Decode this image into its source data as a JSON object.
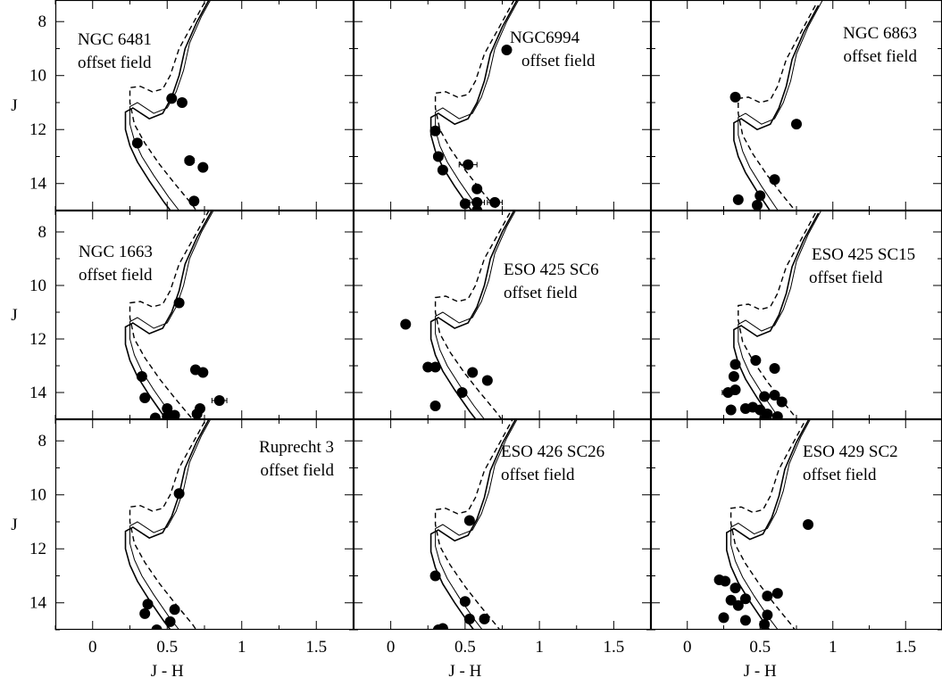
{
  "chart_data": {
    "type": "scatter",
    "layout": "3x3 grid, shared axes",
    "xlabel": "J - H",
    "ylabel": "J",
    "xlim": [
      -0.25,
      1.75
    ],
    "ylim": [
      15.0,
      7.2
    ],
    "y_inverted": true,
    "xticks": [
      0,
      0.5,
      1,
      1.5
    ],
    "xtick_labels": [
      "0",
      "0.5",
      "1",
      "1.5"
    ],
    "yticks": [
      8,
      10,
      12,
      14
    ],
    "ytick_labels": [
      "8",
      "10",
      "12",
      "14"
    ],
    "grid": false,
    "panels": [
      {
        "label": [
          "NGC 6481",
          "offset field"
        ],
        "points": [
          [
            0.53,
            10.85
          ],
          [
            0.6,
            11.0
          ],
          [
            0.3,
            12.5
          ],
          [
            0.65,
            13.15
          ],
          [
            0.74,
            13.4
          ],
          [
            0.68,
            14.65
          ]
        ],
        "xerr": [
          0,
          0,
          0,
          0.03,
          0,
          0
        ],
        "iso_shift": [
          0,
          0
        ]
      },
      {
        "label": [
          "NGC6994",
          "offset field"
        ],
        "points": [
          [
            0.78,
            9.05
          ],
          [
            0.3,
            12.05
          ],
          [
            0.32,
            13.0
          ],
          [
            0.35,
            13.5
          ],
          [
            0.52,
            13.3
          ],
          [
            0.58,
            14.2
          ],
          [
            0.58,
            14.7
          ],
          [
            0.7,
            14.7
          ],
          [
            0.5,
            14.75
          ],
          [
            0.58,
            15.0
          ]
        ],
        "xerr": [
          0,
          0,
          0.03,
          0,
          0.06,
          0,
          0.05,
          0.05,
          0,
          0
        ],
        "iso_shift": [
          0.05,
          0.2
        ]
      },
      {
        "label": [
          "NGC 6863",
          "offset field"
        ],
        "points": [
          [
            0.33,
            10.8
          ],
          [
            0.75,
            11.8
          ],
          [
            0.6,
            13.85
          ],
          [
            0.35,
            14.6
          ],
          [
            0.5,
            14.45
          ],
          [
            0.48,
            14.8
          ]
        ],
        "xerr": [
          0,
          0,
          0.02,
          0,
          0,
          0
        ],
        "iso_shift": [
          0.1,
          0.4
        ]
      },
      {
        "label": [
          "NGC 1663",
          "offset field"
        ],
        "points": [
          [
            0.58,
            10.65
          ],
          [
            0.33,
            13.4
          ],
          [
            0.69,
            13.15
          ],
          [
            0.74,
            13.25
          ],
          [
            0.35,
            14.2
          ],
          [
            0.85,
            14.3
          ],
          [
            0.72,
            14.6
          ],
          [
            0.5,
            14.6
          ],
          [
            0.7,
            14.8
          ],
          [
            0.42,
            14.95
          ],
          [
            0.5,
            14.9
          ],
          [
            0.55,
            14.85
          ]
        ],
        "xerr": [
          0,
          0,
          0,
          0,
          0,
          0.05,
          0,
          0,
          0.03,
          0,
          0,
          0
        ],
        "iso_shift": [
          0,
          0.2
        ]
      },
      {
        "label": [
          "ESO 425 SC6",
          "offset field"
        ],
        "points": [
          [
            0.1,
            11.45
          ],
          [
            0.25,
            13.05
          ],
          [
            0.3,
            13.05
          ],
          [
            0.55,
            13.25
          ],
          [
            0.65,
            13.55
          ],
          [
            0.48,
            14.0
          ],
          [
            0.3,
            14.5
          ]
        ],
        "xerr": [
          0,
          0,
          0,
          0,
          0,
          0.03,
          0
        ],
        "iso_shift": [
          0.05,
          0
        ]
      },
      {
        "label": [
          "ESO 425 SC15",
          "offset field"
        ],
        "points": [
          [
            0.33,
            12.95
          ],
          [
            0.47,
            12.8
          ],
          [
            0.6,
            13.1
          ],
          [
            0.32,
            13.4
          ],
          [
            0.28,
            14.0
          ],
          [
            0.33,
            13.9
          ],
          [
            0.53,
            14.15
          ],
          [
            0.6,
            14.1
          ],
          [
            0.65,
            14.35
          ],
          [
            0.3,
            14.65
          ],
          [
            0.4,
            14.6
          ],
          [
            0.45,
            14.55
          ],
          [
            0.5,
            14.65
          ],
          [
            0.55,
            14.8
          ],
          [
            0.62,
            14.9
          ],
          [
            0.53,
            15.0
          ]
        ],
        "xerr": [
          0,
          0,
          0,
          0,
          0.04,
          0,
          0,
          0,
          0,
          0,
          0,
          0,
          0,
          0,
          0,
          0
        ],
        "iso_shift": [
          0.1,
          0.3
        ]
      },
      {
        "label": [
          "Ruprecht 3",
          "offset field"
        ],
        "points": [
          [
            0.58,
            9.95
          ],
          [
            0.37,
            14.05
          ],
          [
            0.55,
            14.25
          ],
          [
            0.35,
            14.4
          ],
          [
            0.52,
            14.7
          ],
          [
            0.43,
            15.0
          ]
        ],
        "xerr": [
          0,
          0,
          0,
          0,
          0,
          0
        ],
        "iso_shift": [
          0,
          0
        ]
      },
      {
        "label": [
          "ESO 426 SC26",
          "offset field"
        ],
        "points": [
          [
            0.53,
            10.95
          ],
          [
            0.3,
            13.0
          ],
          [
            0.5,
            13.95
          ],
          [
            0.53,
            14.6
          ],
          [
            0.63,
            14.6
          ],
          [
            0.32,
            15.0
          ],
          [
            0.35,
            14.95
          ]
        ],
        "xerr": [
          0,
          0,
          0,
          0,
          0.03,
          0,
          0
        ],
        "iso_shift": [
          0.05,
          0.1
        ]
      },
      {
        "label": [
          "ESO 429 SC2",
          "offset field"
        ],
        "points": [
          [
            0.83,
            11.1
          ],
          [
            0.22,
            13.15
          ],
          [
            0.26,
            13.2
          ],
          [
            0.33,
            13.45
          ],
          [
            0.3,
            13.9
          ],
          [
            0.4,
            13.85
          ],
          [
            0.55,
            13.75
          ],
          [
            0.62,
            13.65
          ],
          [
            0.35,
            14.1
          ],
          [
            0.25,
            14.55
          ],
          [
            0.4,
            14.65
          ],
          [
            0.55,
            14.45
          ],
          [
            0.53,
            14.8
          ]
        ],
        "xerr": [
          0,
          0,
          0,
          0,
          0,
          0,
          0,
          0,
          0,
          0,
          0,
          0,
          0
        ],
        "iso_shift": [
          0.05,
          0.05
        ]
      }
    ],
    "isochrones": {
      "solid": [
        [
          0.8,
          7.0
        ],
        [
          0.7,
          8.0
        ],
        [
          0.62,
          9.0
        ],
        [
          0.58,
          10.0
        ],
        [
          0.53,
          10.8
        ],
        [
          0.47,
          11.4
        ],
        [
          0.38,
          11.6
        ],
        [
          0.27,
          11.2
        ],
        [
          0.22,
          11.35
        ],
        [
          0.22,
          12.0
        ],
        [
          0.25,
          12.6
        ],
        [
          0.3,
          13.2
        ],
        [
          0.38,
          13.9
        ],
        [
          0.48,
          14.7
        ],
        [
          0.55,
          15.2
        ]
      ],
      "dashed": [
        [
          0.78,
          7.0
        ],
        [
          0.68,
          8.0
        ],
        [
          0.58,
          9.0
        ],
        [
          0.52,
          10.0
        ],
        [
          0.47,
          10.5
        ],
        [
          0.4,
          10.6
        ],
        [
          0.32,
          10.4
        ],
        [
          0.25,
          10.45
        ],
        [
          0.25,
          11.0
        ],
        [
          0.28,
          11.8
        ],
        [
          0.35,
          12.5
        ],
        [
          0.45,
          13.3
        ],
        [
          0.55,
          14.0
        ],
        [
          0.67,
          14.8
        ],
        [
          0.72,
          15.2
        ]
      ]
    }
  }
}
